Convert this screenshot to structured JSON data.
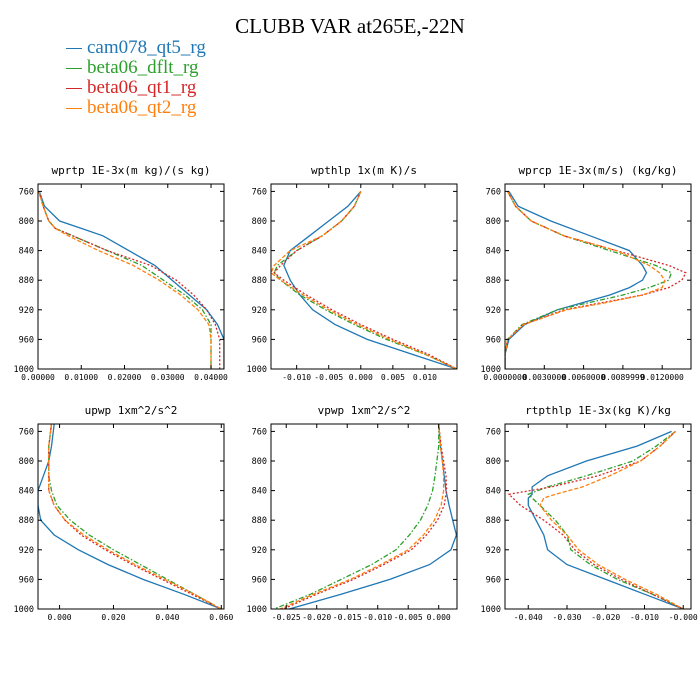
{
  "figure_title": "CLUBB VAR at265E,-22N",
  "legend": [
    {
      "name": "cam078_qt5_rg",
      "color": "#1f77b4"
    },
    {
      "name": "beta06_dflt_rg",
      "color": "#2ca02c"
    },
    {
      "name": "beta06_qt1_rg",
      "color": "#d62728"
    },
    {
      "name": "beta06_qt2_rg",
      "color": "#ff7f0e"
    }
  ],
  "chart_data": [
    {
      "type": "line",
      "title": "wprtp  1E-3x(m kg)/(s kg)",
      "xlim": [
        0,
        0.043
      ],
      "ylim": [
        1000,
        750
      ],
      "xticks": [
        0,
        0.01,
        0.02,
        0.03,
        0.04
      ],
      "xtick_labels": [
        "0.00000",
        "0.01000",
        "0.02000",
        "0.03000",
        "0.04000"
      ],
      "yticks": [
        760,
        800,
        840,
        880,
        920,
        960,
        1000
      ],
      "y": [
        760,
        780,
        800,
        810,
        820,
        840,
        860,
        880,
        900,
        920,
        940,
        960,
        980,
        1000
      ],
      "series": [
        {
          "name": "cam078_qt5_rg",
          "values": [
            0.0003,
            0.0015,
            0.005,
            0.01,
            0.015,
            0.021,
            0.027,
            0.031,
            0.035,
            0.039,
            0.0415,
            0.043,
            0.043,
            0.043
          ]
        },
        {
          "name": "beta06_dflt_rg",
          "values": [
            0.0002,
            0.0012,
            0.0025,
            0.004,
            0.008,
            0.016,
            0.024,
            0.029,
            0.034,
            0.038,
            0.04,
            0.04,
            0.04,
            0.04
          ]
        },
        {
          "name": "beta06_qt1_rg",
          "values": [
            0.0002,
            0.0012,
            0.0025,
            0.004,
            0.008,
            0.016,
            0.026,
            0.032,
            0.036,
            0.039,
            0.041,
            0.042,
            0.042,
            0.042
          ]
        },
        {
          "name": "beta06_qt2_rg",
          "values": [
            0.0002,
            0.0012,
            0.0025,
            0.004,
            0.007,
            0.014,
            0.022,
            0.028,
            0.033,
            0.037,
            0.0395,
            0.04,
            0.04,
            0.04
          ]
        }
      ]
    },
    {
      "type": "line",
      "title": "wpthlp  1x(m K)/s",
      "xlim": [
        -0.014,
        0.015
      ],
      "ylim": [
        1000,
        750
      ],
      "xticks": [
        -0.01,
        -0.005,
        0,
        0.005,
        0.01
      ],
      "xtick_labels": [
        "-0.010",
        "-0.005",
        "0.000",
        "0.005",
        "0.010"
      ],
      "yticks": [
        760,
        800,
        840,
        880,
        920,
        960,
        1000
      ],
      "y": [
        760,
        780,
        800,
        820,
        840,
        860,
        870,
        880,
        900,
        920,
        940,
        960,
        980,
        1000
      ],
      "series": [
        {
          "name": "cam078_qt5_rg",
          "values": [
            0.0,
            -0.002,
            -0.005,
            -0.008,
            -0.011,
            -0.012,
            -0.0115,
            -0.011,
            -0.0095,
            -0.0075,
            -0.004,
            0.001,
            0.008,
            0.015
          ]
        },
        {
          "name": "beta06_dflt_rg",
          "values": [
            0.0,
            -0.001,
            -0.003,
            -0.006,
            -0.01,
            -0.013,
            -0.0135,
            -0.0125,
            -0.0095,
            -0.0055,
            -0.001,
            0.004,
            0.01,
            0.015
          ]
        },
        {
          "name": "beta06_qt1_rg",
          "values": [
            0.0,
            -0.001,
            -0.003,
            -0.006,
            -0.01,
            -0.0125,
            -0.0135,
            -0.012,
            -0.0085,
            -0.0045,
            0.0,
            0.005,
            0.0105,
            0.015
          ]
        },
        {
          "name": "beta06_qt2_rg",
          "values": [
            0.0,
            -0.001,
            -0.003,
            -0.006,
            -0.011,
            -0.0135,
            -0.014,
            -0.0125,
            -0.009,
            -0.005,
            -0.0005,
            0.0045,
            0.01,
            0.015
          ]
        }
      ]
    },
    {
      "type": "line",
      "title": "wprcp  1E-3x(m/s) (kg/kg)",
      "xlim": [
        0,
        0.0142
      ],
      "ylim": [
        1000,
        750
      ],
      "xticks": [
        0,
        0.003,
        0.006,
        0.009,
        0.012
      ],
      "xtick_labels": [
        "0.0000000",
        "0.0030000",
        "0.0060000",
        "0.0089999",
        "0.0120000"
      ],
      "yticks": [
        760,
        800,
        840,
        880,
        920,
        960,
        1000
      ],
      "y": [
        760,
        780,
        800,
        820,
        840,
        860,
        870,
        880,
        890,
        900,
        910,
        920,
        940,
        960,
        980,
        1000
      ],
      "series": [
        {
          "name": "cam078_qt5_rg",
          "values": [
            0.0003,
            0.001,
            0.0035,
            0.0065,
            0.0095,
            0.0105,
            0.0108,
            0.0105,
            0.0095,
            0.008,
            0.006,
            0.004,
            0.0015,
            0.0003,
            0.0,
            0.0
          ]
        },
        {
          "name": "beta06_dflt_rg",
          "values": [
            0.0002,
            0.0008,
            0.002,
            0.0045,
            0.008,
            0.0115,
            0.0127,
            0.0125,
            0.011,
            0.009,
            0.0065,
            0.004,
            0.0013,
            0.0002,
            0.0,
            0.0
          ]
        },
        {
          "name": "beta06_qt1_rg",
          "values": [
            0.0002,
            0.0008,
            0.002,
            0.0045,
            0.0085,
            0.0125,
            0.0138,
            0.0135,
            0.0125,
            0.0105,
            0.0075,
            0.0045,
            0.0014,
            0.0002,
            0.0,
            0.0
          ]
        },
        {
          "name": "beta06_qt2_rg",
          "values": [
            0.0002,
            0.0008,
            0.002,
            0.0045,
            0.0085,
            0.011,
            0.0118,
            0.0122,
            0.012,
            0.0105,
            0.0078,
            0.0047,
            0.0014,
            0.0002,
            0.0,
            0.0
          ]
        }
      ]
    },
    {
      "type": "line",
      "title": "upwp  1xm^2/s^2",
      "xlim": [
        -0.008,
        0.061
      ],
      "ylim": [
        1000,
        750
      ],
      "xticks": [
        0,
        0.02,
        0.04,
        0.06
      ],
      "xtick_labels": [
        "0.000",
        "0.020",
        "0.040",
        "0.060"
      ],
      "yticks": [
        760,
        800,
        840,
        880,
        920,
        960,
        1000
      ],
      "y": [
        750,
        780,
        800,
        820,
        840,
        860,
        880,
        900,
        920,
        940,
        960,
        980,
        1000
      ],
      "series": [
        {
          "name": "cam078_qt5_rg",
          "values": [
            -0.002,
            -0.003,
            -0.004,
            -0.006,
            -0.008,
            -0.008,
            -0.007,
            -0.002,
            0.007,
            0.018,
            0.031,
            0.046,
            0.06
          ]
        },
        {
          "name": "beta06_dflt_rg",
          "values": [
            -0.003,
            -0.004,
            -0.004,
            -0.004,
            -0.003,
            -0.001,
            0.004,
            0.011,
            0.02,
            0.03,
            0.04,
            0.05,
            0.06
          ]
        },
        {
          "name": "beta06_qt1_rg",
          "values": [
            -0.003,
            -0.004,
            -0.004,
            -0.004,
            -0.004,
            -0.002,
            0.002,
            0.008,
            0.017,
            0.027,
            0.038,
            0.049,
            0.06
          ]
        },
        {
          "name": "beta06_qt2_rg",
          "values": [
            -0.003,
            -0.004,
            -0.004,
            -0.004,
            -0.004,
            -0.002,
            0.002,
            0.009,
            0.018,
            0.028,
            0.039,
            0.05,
            0.06
          ]
        }
      ]
    },
    {
      "type": "line",
      "title": "vpwp  1xm^2/s^2",
      "xlim": [
        -0.0275,
        0.003
      ],
      "ylim": [
        1000,
        750
      ],
      "xticks": [
        -0.025,
        -0.02,
        -0.015,
        -0.01,
        -0.005,
        0
      ],
      "xtick_labels": [
        "-0.025",
        "-0.020",
        "-0.015",
        "-0.010",
        "-0.005",
        "0.000"
      ],
      "yticks": [
        760,
        800,
        840,
        880,
        920,
        960,
        1000
      ],
      "y": [
        750,
        780,
        800,
        820,
        840,
        860,
        880,
        900,
        920,
        940,
        960,
        980,
        1000
      ],
      "series": [
        {
          "name": "cam078_qt5_rg",
          "values": [
            0.0,
            0.0003,
            0.0006,
            0.0009,
            0.0012,
            0.0017,
            0.0023,
            0.0029,
            0.002,
            -0.0015,
            -0.008,
            -0.016,
            -0.0245
          ]
        },
        {
          "name": "beta06_dflt_rg",
          "values": [
            0.0,
            0.0,
            -0.0003,
            -0.0006,
            -0.001,
            -0.0018,
            -0.003,
            -0.0048,
            -0.007,
            -0.011,
            -0.016,
            -0.021,
            -0.027
          ]
        },
        {
          "name": "beta06_qt1_rg",
          "values": [
            0.0,
            0.0004,
            0.0008,
            0.0012,
            0.0013,
            0.0009,
            -0.0002,
            -0.002,
            -0.0045,
            -0.009,
            -0.014,
            -0.02,
            -0.0255
          ]
        },
        {
          "name": "beta06_qt2_rg",
          "values": [
            0.0,
            0.0003,
            0.0006,
            0.0008,
            0.0008,
            0.0004,
            -0.0007,
            -0.0025,
            -0.005,
            -0.0095,
            -0.0145,
            -0.0205,
            -0.026
          ]
        }
      ]
    },
    {
      "type": "line",
      "title": "rtpthlp  1E-3x(kg K)/kg",
      "xlim": [
        -0.046,
        0.002
      ],
      "ylim": [
        1000,
        750
      ],
      "xticks": [
        -0.04,
        -0.03,
        -0.02,
        -0.01,
        0
      ],
      "xtick_labels": [
        "-0.040",
        "-0.030",
        "-0.020",
        "-0.010",
        "-0.000"
      ],
      "yticks": [
        760,
        800,
        840,
        880,
        920,
        960,
        1000
      ],
      "y": [
        760,
        780,
        800,
        820,
        835,
        845,
        850,
        860,
        880,
        900,
        920,
        940,
        960,
        980,
        1000
      ],
      "series": [
        {
          "name": "cam078_qt5_rg",
          "values": [
            -0.003,
            -0.012,
            -0.025,
            -0.035,
            -0.039,
            -0.039,
            -0.04,
            -0.04,
            -0.038,
            -0.036,
            -0.035,
            -0.03,
            -0.02,
            -0.01,
            0.0
          ]
        },
        {
          "name": "beta06_dflt_rg",
          "values": [
            -0.002,
            -0.007,
            -0.013,
            -0.025,
            -0.035,
            -0.04,
            -0.039,
            -0.037,
            -0.033,
            -0.03,
            -0.029,
            -0.024,
            -0.017,
            -0.008,
            0.0
          ]
        },
        {
          "name": "beta06_qt1_rg",
          "values": [
            -0.002,
            -0.006,
            -0.011,
            -0.022,
            -0.034,
            -0.045,
            -0.044,
            -0.042,
            -0.036,
            -0.031,
            -0.028,
            -0.023,
            -0.016,
            -0.008,
            0.0
          ]
        },
        {
          "name": "beta06_qt2_rg",
          "values": [
            -0.002,
            -0.006,
            -0.011,
            -0.019,
            -0.026,
            -0.033,
            -0.036,
            -0.037,
            -0.034,
            -0.03,
            -0.027,
            -0.022,
            -0.015,
            -0.007,
            0.0
          ]
        }
      ]
    }
  ]
}
